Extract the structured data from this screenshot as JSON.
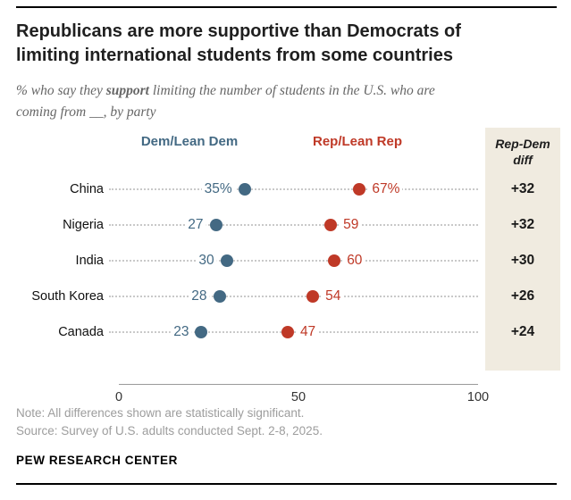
{
  "colors": {
    "dem": "#436983",
    "rep": "#bf3927",
    "panel": "#f0ebe0"
  },
  "header": {
    "title": "Republicans are more supportive than Democrats of limiting international students from some countries",
    "subtitle_prefix": "% who say they ",
    "subtitle_bold": "support",
    "subtitle_suffix": " limiting the number of students in the U.S. who are coming from __, by party"
  },
  "legend": {
    "dem_label": "Dem/Lean Dem",
    "rep_label": "Rep/Lean Rep"
  },
  "diff_column": {
    "header_line1": "Rep-Dem",
    "header_line2": "diff",
    "values": [
      "+32",
      "+32",
      "+30",
      "+26",
      "+24"
    ]
  },
  "chart_data": {
    "type": "scatter",
    "subtype": "dot-plot",
    "title": "Republicans are more supportive than Democrats of limiting international students from some countries",
    "categories": [
      "China",
      "Nigeria",
      "India",
      "South Korea",
      "Canada"
    ],
    "series": [
      {
        "name": "Dem/Lean Dem",
        "color": "#436983",
        "values": [
          35,
          27,
          30,
          28,
          23
        ],
        "value_labels": [
          "35%",
          "27",
          "30",
          "28",
          "23"
        ]
      },
      {
        "name": "Rep/Lean Rep",
        "color": "#bf3927",
        "values": [
          67,
          59,
          60,
          54,
          47
        ],
        "value_labels": [
          "67%",
          "59",
          "60",
          "54",
          "47"
        ]
      }
    ],
    "rep_dem_diff": [
      "+32",
      "+32",
      "+30",
      "+26",
      "+24"
    ],
    "xlim": [
      0,
      100
    ],
    "xticks": [
      0,
      50,
      100
    ],
    "grid": false,
    "legend_position": "top"
  },
  "footer": {
    "note": "Note: All differences shown are statistically significant.",
    "source": "Source: Survey of U.S. adults conducted Sept. 2-8, 2025.",
    "brand": "PEW RESEARCH CENTER"
  }
}
